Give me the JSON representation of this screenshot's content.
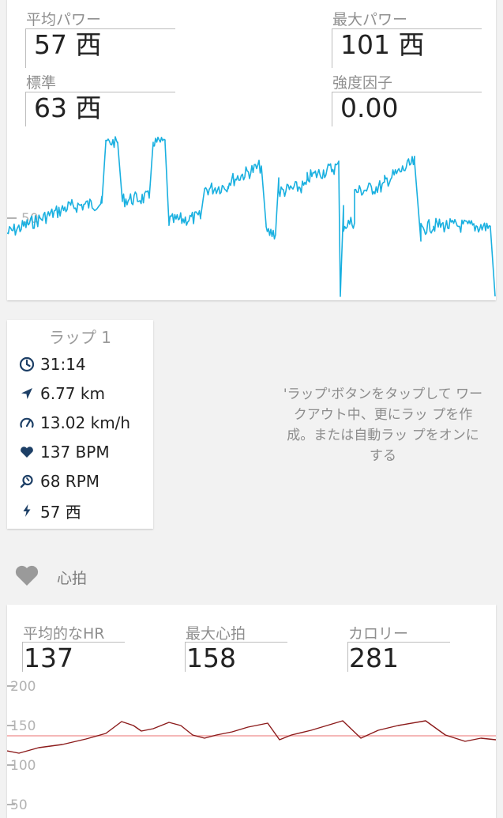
{
  "power": {
    "avg": {
      "label": "平均パワー",
      "value": "57 西"
    },
    "max": {
      "label": "最大パワー",
      "value": "101 西"
    },
    "std": {
      "label": "標準",
      "value": "63 西"
    },
    "intensity": {
      "label": "強度因子",
      "value": "0.00"
    },
    "chart": {
      "axis_label": "50"
    }
  },
  "lap": {
    "title": "ラップ 1",
    "rows": [
      {
        "icon": "clock-icon",
        "text": "31:14"
      },
      {
        "icon": "location-arrow-icon",
        "text": "6.77 km"
      },
      {
        "icon": "speedometer-icon",
        "text": "13.02 km/h"
      },
      {
        "icon": "heart-icon",
        "text": "137 BPM"
      },
      {
        "icon": "cadence-icon",
        "text": "68 RPM"
      },
      {
        "icon": "lightning-icon",
        "text": "57 西"
      }
    ],
    "hint": "'ラップ'ボタンをタップして ワークアウト中、更にラッ プを作成。または自動ラッ プをオンにする"
  },
  "heart_section": {
    "label": "心拍"
  },
  "hr": {
    "avg": {
      "label": "平均的なHR",
      "value": "137"
    },
    "max": {
      "label": "最大心拍",
      "value": "158"
    },
    "calories": {
      "label": "カロリー",
      "value": "281"
    },
    "chart": {
      "ticks": [
        "200",
        "150",
        "100",
        "50"
      ]
    }
  },
  "colors": {
    "power_line": "#1ab0e0",
    "hr_line": "#8b1a1a",
    "hr_avg_line": "#f2a0a0",
    "icon_navy": "#1d3f66",
    "heart_gray": "#9a9a9a"
  }
}
